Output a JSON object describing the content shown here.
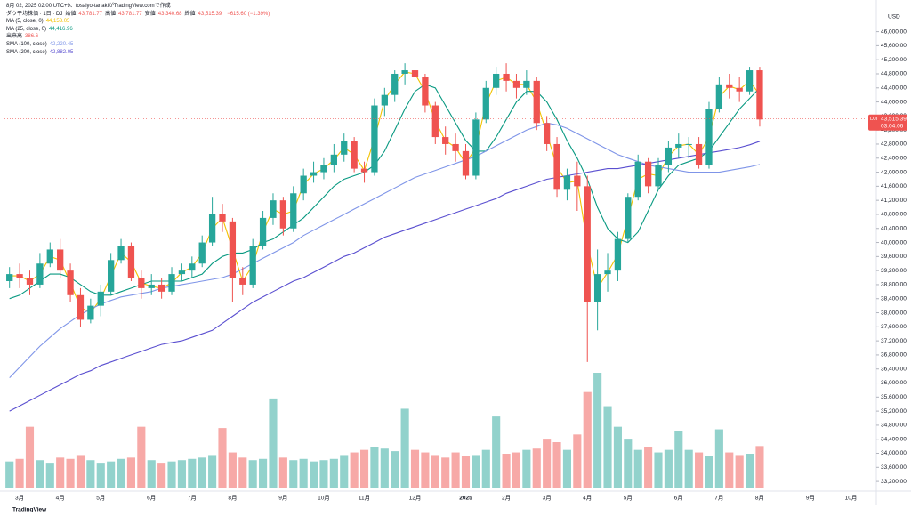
{
  "chart_data": {
    "type": "candlestick",
    "created": "8月 02, 2025 02:00 UTC+9、tosaiyo-tanakiがTradingView.comで作成",
    "title": "ダウ平均株価 · 1日 · DJ",
    "ohlc_labels": [
      {
        "name": "始値",
        "value": "43,781.77"
      },
      {
        "name": "高値",
        "value": "43,781.77"
      },
      {
        "name": "安値",
        "value": "43,340.68"
      },
      {
        "name": "終値",
        "value": "43,515.39"
      }
    ],
    "change": "−615.60 (−1.39%)",
    "currency": "USD",
    "symbol_tag": "DJI",
    "countdown": "03:04:06",
    "brand": "TradingView",
    "last_price": {
      "value": 43515.39,
      "label": "43,515.39"
    },
    "up_color": "#26a69a",
    "down_color": "#ef5350",
    "grid": false,
    "ylim": [
      33000,
      46800
    ],
    "yticks": [
      {
        "value": 33200,
        "label": "33,200.00"
      },
      {
        "value": 33600,
        "label": "33,600.00"
      },
      {
        "value": 34000,
        "label": "34,000.00"
      },
      {
        "value": 34400,
        "label": "34,400.00"
      },
      {
        "value": 34800,
        "label": "34,800.00"
      },
      {
        "value": 35200,
        "label": "35,200.00"
      },
      {
        "value": 35600,
        "label": "35,600.00"
      },
      {
        "value": 36000,
        "label": "36,000.00"
      },
      {
        "value": 36400,
        "label": "36,400.00"
      },
      {
        "value": 36800,
        "label": "36,800.00"
      },
      {
        "value": 37200,
        "label": "37,200.00"
      },
      {
        "value": 37600,
        "label": "37,600.00"
      },
      {
        "value": 38000,
        "label": "38,000.00"
      },
      {
        "value": 38400,
        "label": "38,400.00"
      },
      {
        "value": 38800,
        "label": "38,800.00"
      },
      {
        "value": 39200,
        "label": "39,200.00"
      },
      {
        "value": 39600,
        "label": "39,600.00"
      },
      {
        "value": 40000,
        "label": "40,000.00"
      },
      {
        "value": 40400,
        "label": "40,400.00"
      },
      {
        "value": 40800,
        "label": "40,800.00"
      },
      {
        "value": 41200,
        "label": "41,200.00"
      },
      {
        "value": 41600,
        "label": "41,600.00"
      },
      {
        "value": 42000,
        "label": "42,000.00"
      },
      {
        "value": 42400,
        "label": "42,400.00"
      },
      {
        "value": 42800,
        "label": "42,800.00"
      },
      {
        "value": 43200,
        "label": "43,200.00"
      },
      {
        "value": 43600,
        "label": "43,600.00"
      },
      {
        "value": 44000,
        "label": "44,000.00"
      },
      {
        "value": 44400,
        "label": "44,400.00"
      },
      {
        "value": 44800,
        "label": "44,800.00"
      },
      {
        "value": 45200,
        "label": "45,200.00"
      },
      {
        "value": 45600,
        "label": "45,600.00"
      },
      {
        "value": 46000,
        "label": "46,000.00"
      }
    ],
    "categories": [
      null,
      "3月",
      null,
      null,
      null,
      "4月",
      null,
      null,
      null,
      "5月",
      null,
      null,
      null,
      null,
      "6月",
      null,
      null,
      null,
      "7月",
      null,
      null,
      null,
      "8月",
      null,
      null,
      null,
      null,
      "9月",
      null,
      null,
      null,
      "10月",
      null,
      null,
      null,
      "11月",
      null,
      null,
      null,
      null,
      "12月",
      null,
      null,
      null,
      null,
      "2025",
      null,
      null,
      null,
      "2月",
      null,
      null,
      null,
      "3月",
      null,
      null,
      null,
      "4月",
      null,
      null,
      null,
      "5月",
      null,
      null,
      null,
      null,
      "6月",
      null,
      null,
      null,
      "7月",
      null,
      null,
      null,
      "8月",
      null,
      null,
      null,
      null,
      "9月",
      null,
      null,
      null,
      "10月",
      null,
      null
    ],
    "ohlc": [
      [
        38900,
        39300,
        38700,
        39100
      ],
      [
        39100,
        39400,
        38700,
        39000
      ],
      [
        39000,
        39200,
        38500,
        38800
      ],
      [
        38800,
        39700,
        38700,
        39400
      ],
      [
        39400,
        40000,
        39300,
        39800
      ],
      [
        39800,
        40100,
        39000,
        39200
      ],
      [
        39200,
        39400,
        38300,
        38500
      ],
      [
        38500,
        38700,
        37600,
        37800
      ],
      [
        37800,
        38400,
        37700,
        38200
      ],
      [
        38200,
        38800,
        37900,
        38600
      ],
      [
        38600,
        39700,
        38500,
        39500
      ],
      [
        39500,
        40100,
        39400,
        39900
      ],
      [
        39900,
        40000,
        38900,
        39000
      ],
      [
        39000,
        39200,
        38400,
        38700
      ],
      [
        38700,
        39100,
        38500,
        38800
      ],
      [
        38800,
        39000,
        38400,
        38600
      ],
      [
        38600,
        39300,
        38500,
        39100
      ],
      [
        39100,
        39400,
        38900,
        39200
      ],
      [
        39200,
        39600,
        39000,
        39400
      ],
      [
        39400,
        40200,
        39300,
        40000
      ],
      [
        40000,
        41300,
        39900,
        40800
      ],
      [
        40800,
        41100,
        40300,
        40600
      ],
      [
        40600,
        40700,
        38300,
        39000
      ],
      [
        39000,
        39300,
        38500,
        38800
      ],
      [
        38800,
        40100,
        38700,
        39900
      ],
      [
        39900,
        40900,
        39800,
        40700
      ],
      [
        40700,
        41400,
        40500,
        41200
      ],
      [
        41200,
        41300,
        40200,
        40400
      ],
      [
        40400,
        41600,
        40300,
        41400
      ],
      [
        41400,
        42100,
        41200,
        41900
      ],
      [
        41900,
        42300,
        41700,
        42000
      ],
      [
        42000,
        42400,
        41800,
        42200
      ],
      [
        42200,
        42800,
        42000,
        42500
      ],
      [
        42500,
        43100,
        42300,
        42900
      ],
      [
        42900,
        43000,
        42000,
        42100
      ],
      [
        42100,
        42300,
        41700,
        42000
      ],
      [
        42000,
        44100,
        41900,
        43900
      ],
      [
        43900,
        44400,
        43600,
        44200
      ],
      [
        44200,
        44900,
        44000,
        44800
      ],
      [
        44800,
        45100,
        44500,
        44900
      ],
      [
        44900,
        45000,
        44400,
        44700
      ],
      [
        44700,
        44800,
        43700,
        43900
      ],
      [
        43900,
        44000,
        42800,
        43000
      ],
      [
        43000,
        43300,
        42500,
        42800
      ],
      [
        42800,
        43100,
        42300,
        42600
      ],
      [
        42600,
        42800,
        41800,
        41900
      ],
      [
        41900,
        43700,
        41800,
        43500
      ],
      [
        43500,
        44600,
        43400,
        44400
      ],
      [
        44400,
        45000,
        44200,
        44800
      ],
      [
        44800,
        45100,
        44300,
        44600
      ],
      [
        44600,
        44800,
        44100,
        44400
      ],
      [
        44400,
        44900,
        44200,
        44600
      ],
      [
        44600,
        44700,
        43200,
        43400
      ],
      [
        43400,
        43600,
        42600,
        42800
      ],
      [
        42800,
        43000,
        41300,
        41500
      ],
      [
        41500,
        42100,
        41200,
        41900
      ],
      [
        41900,
        42300,
        40900,
        41600
      ],
      [
        41600,
        41900,
        36600,
        38300
      ],
      [
        38300,
        39800,
        37500,
        39100
      ],
      [
        39100,
        39700,
        38600,
        39200
      ],
      [
        39200,
        40300,
        38900,
        40100
      ],
      [
        40100,
        41400,
        40000,
        41300
      ],
      [
        41300,
        42500,
        41200,
        42300
      ],
      [
        42300,
        42400,
        41400,
        41600
      ],
      [
        41600,
        42400,
        41500,
        42200
      ],
      [
        42200,
        42900,
        42000,
        42700
      ],
      [
        42700,
        43100,
        42400,
        42800
      ],
      [
        42800,
        43000,
        42400,
        42800
      ],
      [
        42800,
        43000,
        42100,
        42200
      ],
      [
        42200,
        44000,
        42100,
        43800
      ],
      [
        43800,
        44700,
        43700,
        44500
      ],
      [
        44500,
        44800,
        44100,
        44400
      ],
      [
        44400,
        44700,
        44000,
        44300
      ],
      [
        44300,
        45000,
        44200,
        44900
      ],
      [
        44900,
        45000,
        43300,
        43500
      ],
      null,
      null,
      null,
      null,
      null,
      null,
      null,
      null,
      null,
      null,
      null
    ],
    "volume_name": "出来高",
    "volume_label": "386.6",
    "volume": [
      210,
      230,
      480,
      220,
      200,
      240,
      230,
      260,
      220,
      200,
      210,
      230,
      240,
      480,
      220,
      200,
      210,
      220,
      230,
      240,
      260,
      470,
      280,
      240,
      220,
      230,
      700,
      240,
      220,
      230,
      210,
      220,
      230,
      260,
      280,
      300,
      320,
      310,
      290,
      620,
      300,
      280,
      260,
      240,
      280,
      250,
      260,
      300,
      560,
      270,
      280,
      300,
      310,
      380,
      360,
      300,
      420,
      750,
      900,
      640,
      480,
      380,
      300,
      320,
      280,
      300,
      450,
      300,
      280,
      250,
      460,
      280,
      260,
      270,
      330,
      null,
      null,
      null,
      null,
      null,
      null,
      null,
      null,
      null,
      null,
      null
    ],
    "series": [
      {
        "name": "MA (5, close, 0)",
        "color": "#f2c200",
        "last": "44,153.05",
        "values": [
          39050,
          39050,
          38900,
          39100,
          39600,
          39500,
          38850,
          38150,
          38000,
          38400,
          39050,
          39700,
          39450,
          38850,
          38750,
          38700,
          38850,
          39150,
          39300,
          39700,
          40400,
          40700,
          39800,
          38900,
          39350,
          40300,
          40950,
          40800,
          40900,
          41650,
          41950,
          42100,
          42350,
          42700,
          42500,
          42050,
          42950,
          44050,
          44500,
          44850,
          44800,
          44300,
          43450,
          42900,
          42700,
          42250,
          42700,
          43950,
          44600,
          44700,
          44500,
          44500,
          44000,
          43100,
          42150,
          41700,
          41750,
          39950,
          38700,
          39150,
          39650,
          40700,
          41800,
          41950,
          41900,
          42450,
          42750,
          42800,
          42500,
          43000,
          44150,
          44450,
          44350,
          44600,
          44200,
          null,
          null,
          null,
          null,
          null,
          null,
          null,
          null,
          null,
          null,
          null
        ]
      },
      {
        "name": "MA (25, close, 0)",
        "color": "#089981",
        "last": "44,416.96",
        "values": [
          38400,
          38500,
          38700,
          38900,
          39100,
          39100,
          39000,
          38800,
          38600,
          38500,
          38500,
          38600,
          38700,
          38800,
          38900,
          38900,
          38900,
          38900,
          39000,
          39100,
          39400,
          39600,
          39700,
          39700,
          39800,
          40000,
          40100,
          40300,
          40500,
          40700,
          41000,
          41300,
          41600,
          41800,
          41900,
          42000,
          42200,
          42600,
          43200,
          43800,
          44300,
          44500,
          44400,
          43900,
          43400,
          42900,
          42600,
          42600,
          43000,
          43500,
          44000,
          44300,
          44300,
          44000,
          43500,
          42900,
          42400,
          41800,
          41000,
          40400,
          40100,
          40000,
          40300,
          40900,
          41500,
          41900,
          42200,
          42300,
          42400,
          42600,
          43000,
          43400,
          43800,
          44100,
          44400,
          null,
          null,
          null,
          null,
          null,
          null,
          null,
          null,
          null,
          null,
          null
        ]
      },
      {
        "name": "SMA (100, close)",
        "color": "#7f95e8",
        "last": "42,220.45",
        "values": [
          36150,
          36450,
          36750,
          37050,
          37300,
          37550,
          37750,
          37950,
          38100,
          38250,
          38350,
          38450,
          38500,
          38550,
          38600,
          38700,
          38750,
          38800,
          38850,
          38900,
          38950,
          39000,
          39100,
          39250,
          39400,
          39550,
          39700,
          39850,
          40000,
          40200,
          40350,
          40500,
          40650,
          40800,
          40950,
          41100,
          41250,
          41400,
          41550,
          41700,
          41850,
          41950,
          42050,
          42150,
          42250,
          42350,
          42450,
          42600,
          42750,
          42900,
          43050,
          43200,
          43300,
          43400,
          43350,
          43250,
          43100,
          42950,
          42800,
          42650,
          42500,
          42400,
          42300,
          42200,
          42150,
          42100,
          42050,
          42000,
          42000,
          42000,
          42000,
          42050,
          42100,
          42150,
          42220,
          null,
          null,
          null,
          null,
          null,
          null,
          null,
          null,
          null,
          null,
          null
        ]
      },
      {
        "name": "SMA (200, close)",
        "color": "#5a4fd0",
        "last": "42,882.05",
        "values": [
          35200,
          35350,
          35500,
          35650,
          35800,
          35950,
          36100,
          36250,
          36350,
          36500,
          36600,
          36700,
          36800,
          36900,
          37000,
          37100,
          37150,
          37200,
          37300,
          37400,
          37500,
          37700,
          37900,
          38100,
          38300,
          38450,
          38600,
          38750,
          38900,
          39000,
          39150,
          39300,
          39450,
          39600,
          39700,
          39850,
          40000,
          40150,
          40250,
          40350,
          40450,
          40550,
          40650,
          40750,
          40850,
          40950,
          41050,
          41150,
          41250,
          41400,
          41500,
          41600,
          41700,
          41800,
          41850,
          41900,
          41950,
          42000,
          42050,
          42100,
          42100,
          42150,
          42200,
          42250,
          42300,
          42350,
          42400,
          42450,
          42500,
          42550,
          42600,
          42650,
          42700,
          42780,
          42880,
          null,
          null,
          null,
          null,
          null,
          null,
          null,
          null,
          null,
          null,
          null
        ]
      }
    ]
  }
}
